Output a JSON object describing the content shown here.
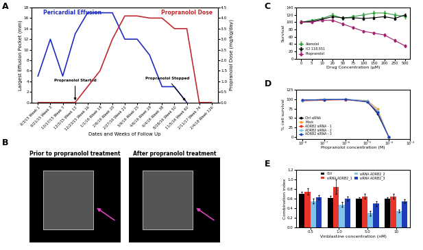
{
  "chart_data": [
    {
      "panel": "A",
      "type": "line",
      "x_label": "Dates and Weeks of Follow Up",
      "y_label": "Largest Effusion Pocket (mm)",
      "y2_label": "Propranolol Dose (mg/kg/day)",
      "categories": [
        "9/3/15 Week 1",
        "9/21/15 Week 3",
        "10/17/15 Week 7",
        "12/3/15 Week 13",
        "12/23/15 Week 16",
        "1/1/16 Week 18",
        "2/6/16 Week 20",
        "2/27/16 Week 23",
        "3/9/16 Week 25",
        "4/6/16 Week 29",
        "6/4/16 Week 38",
        "8/28/16 Week 50",
        "11/5/16 Week 60",
        "2/11/17 Week 74",
        "2/4/18 Week 126"
      ],
      "series": [
        {
          "name": "Pericardial Effusion",
          "color": "#1f2bbf",
          "values": [
            5,
            12,
            5,
            13,
            17,
            17,
            17,
            12,
            12,
            9,
            3,
            3,
            0,
            null,
            null
          ]
        },
        {
          "name": "Propranolol Dose",
          "color": "#c0282d",
          "axis": "y2",
          "values": [
            0,
            0,
            0,
            0,
            0.75,
            1.5,
            3,
            4.1,
            4.1,
            4.0,
            4.0,
            3.5,
            3.5,
            0,
            0
          ]
        }
      ],
      "ylim": [
        0,
        18
      ],
      "yticks": [
        0,
        2,
        4,
        6,
        8,
        10,
        12,
        14,
        16,
        18
      ],
      "y2lim": [
        0,
        4.5
      ],
      "y2ticks": [
        {
          "value": 0,
          "label": "0.0"
        },
        {
          "value": 0.5,
          "label": "0.5"
        },
        {
          "value": 1,
          "label": "1.0"
        },
        {
          "value": 1.5,
          "label": "1.5"
        },
        {
          "value": 2,
          "label": "2.0"
        },
        {
          "value": 2.5,
          "label": "2.5"
        },
        {
          "value": 3,
          "label": "3.0"
        },
        {
          "value": 3.5,
          "label": "3.5"
        },
        {
          "value": 4,
          "label": "4.0"
        },
        {
          "value": 4.5,
          "label": "4.5"
        }
      ],
      "annotations": [
        {
          "text": "Propranolol Started",
          "category": "12/3/15 Week 13"
        },
        {
          "text": "Propranolol Stopped",
          "category": "11/5/16 Week 60"
        }
      ]
    },
    {
      "panel": "B",
      "type": "image",
      "titles": [
        "Prior to propranolol treatment",
        "After propranolol treatment"
      ]
    },
    {
      "panel": "C",
      "type": "line",
      "x_label": "Drug Concentration (µM)",
      "y_label": "Survival",
      "categories": [
        "0",
        "5",
        "10",
        "20",
        "50",
        "75",
        "100",
        "150",
        "200",
        "250",
        "500"
      ],
      "series": [
        {
          "name": "Atenolol",
          "color": "#2e9e3a",
          "marker": "s",
          "values": [
            100,
            105,
            110,
            120,
            110,
            115,
            120,
            125,
            125,
            120,
            115
          ],
          "errors": [
            4,
            4,
            4,
            5,
            4,
            4,
            5,
            5,
            5,
            5,
            5
          ]
        },
        {
          "name": "ICI 118,551",
          "color": "#000000",
          "marker": "^",
          "values": [
            100,
            102,
            108,
            115,
            112,
            112,
            110,
            112,
            115,
            110,
            120
          ],
          "errors": [
            4,
            4,
            4,
            4,
            4,
            4,
            4,
            4,
            4,
            4,
            4
          ]
        },
        {
          "name": "Propranolol",
          "color": "#a0206e",
          "marker": "o",
          "values": [
            100,
            100,
            105,
            105,
            95,
            85,
            75,
            70,
            65,
            50,
            35
          ],
          "errors": [
            3,
            3,
            3,
            3,
            3,
            3,
            3,
            3,
            3,
            3,
            3
          ]
        }
      ],
      "ylim": [
        0,
        140
      ],
      "yticks": [
        0,
        20,
        40,
        60,
        80,
        100,
        120,
        140
      ],
      "legend": "lower left"
    },
    {
      "panel": "D",
      "type": "line",
      "log": "x",
      "x_label": "Propranolol concentration (M)",
      "y_label": "% cell survival",
      "x": [
        1e-08,
        1e-07,
        1e-06,
        1e-05,
        3e-05,
        0.0001
      ],
      "series": [
        {
          "name": "Ctrl siRNA",
          "color": "#000000",
          "values": [
            98,
            100,
            100,
            95,
            62,
            0
          ]
        },
        {
          "name": "Mock",
          "color": "#f0a030",
          "values": [
            97,
            99,
            100,
            97,
            75,
            0
          ]
        },
        {
          "name": "ADRB2 siRNA - 1",
          "color": "#e8342b",
          "values": [
            96,
            98,
            99,
            94,
            68,
            0
          ]
        },
        {
          "name": "ADRB2 siRNA - 2",
          "color": "#7ec3ea",
          "values": [
            97,
            100,
            101,
            96,
            70,
            0
          ]
        },
        {
          "name": "ADRB2 siRNA - 3",
          "color": "#1f3fb8",
          "values": [
            98,
            99,
            100,
            93,
            65,
            0
          ]
        }
      ],
      "xlim": [
        5e-09,
        0.001
      ],
      "xticks": [
        {
          "value": 1e-08,
          "label": "10⁻⁸"
        },
        {
          "value": 1e-07,
          "label": "10⁻⁷"
        },
        {
          "value": 1e-06,
          "label": "10⁻⁶"
        },
        {
          "value": 1e-05,
          "label": "10⁻⁵"
        },
        {
          "value": 0.0001,
          "label": "10⁻⁴"
        },
        {
          "value": 0.001,
          "label": "10⁻³"
        }
      ],
      "ylim": [
        -5,
        125
      ],
      "yticks": [
        0,
        25,
        50,
        75,
        100,
        125
      ],
      "legend": "lower left"
    },
    {
      "panel": "E",
      "type": "bar",
      "x_label": "Vinblastine concentration (nM)",
      "y_label": "Combination index",
      "categories": [
        "0.5",
        "1.0",
        "5.0",
        "10"
      ],
      "series": [
        {
          "name": "Ctrl",
          "color": "#000000",
          "values": [
            0.7,
            0.62,
            0.6,
            0.6
          ],
          "errors": [
            0.04,
            0.04,
            0.03,
            0.03
          ]
        },
        {
          "name": "siRNA ADRB2_1",
          "color": "#e8342b",
          "values": [
            0.75,
            0.85,
            0.65,
            0.65
          ],
          "errors": [
            0.06,
            0.15,
            0.05,
            0.05
          ]
        },
        {
          "name": "siRNA ADRB2_2",
          "color": "#7ec3ea",
          "values": [
            0.55,
            0.48,
            0.3,
            0.35
          ],
          "errors": [
            0.05,
            0.05,
            0.05,
            0.03
          ]
        },
        {
          "name": "siRNA ADRB2_3",
          "color": "#1f3fb8",
          "values": [
            0.63,
            0.6,
            0.5,
            0.55
          ],
          "errors": [
            0.04,
            0.04,
            0.05,
            0.04
          ]
        }
      ],
      "ylim": [
        0,
        1.2
      ],
      "yticks": [
        {
          "value": 0,
          "label": "0.0"
        },
        {
          "value": 0.2,
          "label": "0.2"
        },
        {
          "value": 0.4,
          "label": "0.4"
        },
        {
          "value": 0.6,
          "label": "0.6"
        },
        {
          "value": 0.8,
          "label": "0.8"
        },
        {
          "value": 1.0,
          "label": "1.0"
        },
        {
          "value": 1.2,
          "label": "1.2"
        }
      ],
      "legend": "upper center"
    }
  ]
}
